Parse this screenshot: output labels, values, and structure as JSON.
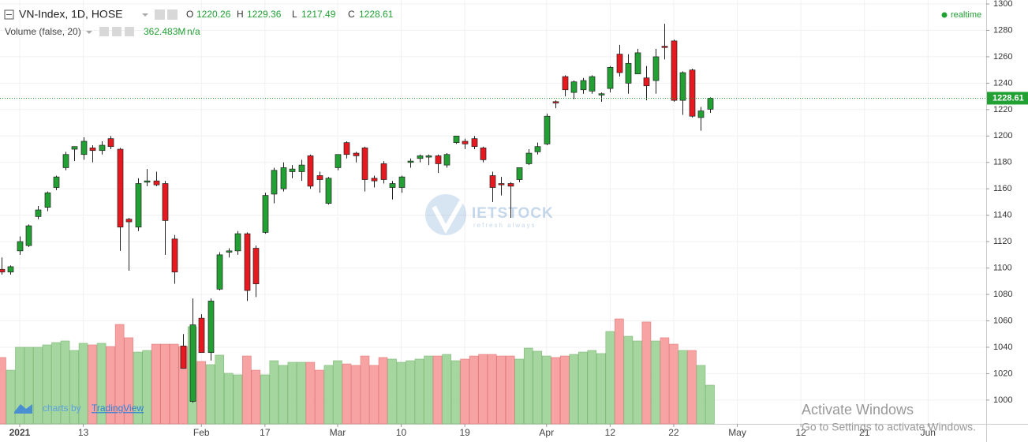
{
  "chart_data": {
    "type": "candlestick",
    "title": "VN-Index, 1D, HOSE",
    "ohlc_labels": [
      "O",
      "H",
      "L",
      "C"
    ],
    "open": [
      1099,
      1097,
      1113,
      1117,
      1139,
      1146,
      1161,
      1176,
      1190,
      1186,
      1191,
      1189,
      1198,
      1190,
      1137,
      1131,
      1165,
      1166,
      1164,
      1122,
      1041,
      999,
      1062,
      1036,
      1084,
      1112,
      1113,
      1126,
      1115,
      1127,
      1156,
      1160,
      1173,
      1173,
      1185,
      1170,
      1149,
      1176,
      1195,
      1187,
      1191,
      1168,
      1179,
      1161,
      1161,
      1180,
      1183,
      1184,
      1185,
      1178,
      1195,
      1196,
      1198,
      1191,
      1170,
      1164,
      1164,
      1167,
      1179,
      1188,
      1194,
      1226,
      1245,
      1233,
      1235,
      1234,
      1231,
      1236,
      1262,
      1240,
      1247,
      1244,
      1242,
      1268,
      1272,
      1227,
      1250,
      1214,
      1220.26
    ],
    "high": [
      1108,
      1102,
      1124,
      1133,
      1147,
      1158,
      1170,
      1188,
      1192,
      1199,
      1193,
      1196,
      1200,
      1191,
      1138,
      1168,
      1175,
      1173,
      1166,
      1125,
      1050,
      1077,
      1065,
      1077,
      1112,
      1115,
      1128,
      1127,
      1117,
      1157,
      1176,
      1180,
      1178,
      1182,
      1186,
      1173,
      1169,
      1186,
      1196,
      1188,
      1192,
      1170,
      1181,
      1166,
      1170,
      1183,
      1186,
      1186,
      1186,
      1187,
      1200,
      1198,
      1200,
      1192,
      1173,
      1169,
      1165,
      1176,
      1190,
      1195,
      1217,
      1227,
      1246,
      1242,
      1244,
      1246,
      1233,
      1253,
      1269,
      1262,
      1266,
      1253,
      1266,
      1285,
      1273,
      1249,
      1251,
      1222,
      1229.36
    ],
    "low": [
      1095,
      1095,
      1110,
      1116,
      1137,
      1143,
      1159,
      1174,
      1181,
      1182,
      1180,
      1186,
      1190,
      1113,
      1098,
      1128,
      1162,
      1162,
      1110,
      1088,
      1024,
      998,
      1036,
      1030,
      1083,
      1108,
      1110,
      1075,
      1078,
      1126,
      1149,
      1158,
      1168,
      1166,
      1160,
      1157,
      1148,
      1174,
      1183,
      1180,
      1158,
      1161,
      1164,
      1152,
      1157,
      1176,
      1180,
      1178,
      1172,
      1176,
      1194,
      1190,
      1190,
      1180,
      1150,
      1155,
      1138,
      1165,
      1178,
      1186,
      1193,
      1221,
      1230,
      1228,
      1232,
      1232,
      1226,
      1233,
      1245,
      1232,
      1247,
      1227,
      1232,
      1258,
      1226,
      1216,
      1214,
      1204,
      1217.49
    ],
    "close": [
      1097,
      1101,
      1120,
      1132,
      1144,
      1157,
      1169,
      1186,
      1192,
      1196,
      1189,
      1193,
      1192,
      1131,
      1135,
      1164,
      1166,
      1163,
      1136,
      1097,
      1024,
      1057,
      1036,
      1075,
      1110,
      1113,
      1126,
      1083,
      1088,
      1155,
      1174,
      1176,
      1175,
      1178,
      1162,
      1167,
      1168,
      1186,
      1186,
      1185,
      1167,
      1166,
      1167,
      1164,
      1169,
      1181,
      1185,
      1185,
      1179,
      1186,
      1200,
      1194,
      1192,
      1182,
      1161,
      1163,
      1162,
      1176,
      1187,
      1192,
      1215,
      1225,
      1235,
      1241,
      1242,
      1245,
      1232,
      1252,
      1248,
      1255,
      1263,
      1238,
      1260,
      1267,
      1227,
      1248,
      1215,
      1219,
      1228.61
    ],
    "up_color": "#22a034",
    "down_color": "#e5191f",
    "volume": {
      "name": "Volume (false, 20)",
      "values": [
        622,
        503,
        718,
        718,
        718,
        740,
        762,
        777,
        688,
        755,
        740,
        755,
        725,
        932,
        807,
        673,
        688,
        747,
        747,
        747,
        725,
        910,
        585,
        555,
        644,
        474,
        459,
        636,
        503,
        459,
        592,
        548,
        577,
        577,
        577,
        503,
        548,
        592,
        562,
        548,
        636,
        548,
        622,
        607,
        577,
        592,
        607,
        636,
        636,
        651,
        592,
        607,
        636,
        651,
        651,
        636,
        636,
        607,
        710,
        681,
        636,
        622,
        636,
        651,
        673,
        688,
        659,
        866,
        984,
        821,
        777,
        955,
        777,
        807,
        747,
        688,
        688,
        548,
        362.483
      ],
      "value_labels": [
        null,
        null,
        null,
        null,
        null,
        null,
        null,
        null,
        null,
        null,
        null,
        null,
        null,
        null,
        null,
        null,
        null,
        null,
        null,
        null,
        null,
        null,
        null,
        null,
        null,
        null,
        null,
        null,
        null,
        null,
        null,
        null,
        null,
        null,
        null,
        null,
        null,
        null,
        null,
        null,
        null,
        null,
        null,
        null,
        null,
        null,
        null,
        null,
        null,
        null,
        null,
        null,
        null,
        null,
        null,
        null,
        null,
        null,
        null,
        null,
        null,
        null,
        null,
        null,
        null,
        null,
        null,
        null,
        null,
        null,
        null,
        null,
        null,
        null,
        null,
        null,
        null,
        null,
        "362.483M"
      ],
      "extra": "n/a",
      "up_color": "#a5d6a0",
      "down_color": "#f7a3a3"
    },
    "ylim": [
      982,
      1303
    ],
    "yticks": [
      1000,
      1020,
      1040,
      1060,
      1080,
      1100,
      1120,
      1140,
      1160,
      1180,
      1200,
      1220,
      1240,
      1260,
      1280,
      1300
    ],
    "xlim": [
      -0.17,
      108.4
    ],
    "xticks": [
      {
        "value": 2,
        "label": "2021"
      },
      {
        "value": 9,
        "label": "13"
      },
      {
        "value": 22,
        "label": "Feb"
      },
      {
        "value": 29,
        "label": "17"
      },
      {
        "value": 37,
        "label": "Mar"
      },
      {
        "value": 44,
        "label": "10"
      },
      {
        "value": 51,
        "label": "19"
      },
      {
        "value": 60,
        "label": "Apr"
      },
      {
        "value": 67,
        "label": "12"
      },
      {
        "value": 74,
        "label": "22"
      },
      {
        "value": 81,
        "label": "May"
      },
      {
        "value": 88,
        "label": "12"
      },
      {
        "value": 95,
        "label": "21"
      },
      {
        "value": 102,
        "label": "Jun"
      }
    ],
    "grid": true,
    "last_price_line": true,
    "status": "realtime",
    "watermark": "IETSTOCK",
    "watermark_sub": "refresh always",
    "credit": "charts by",
    "credit_brand": "TradingView",
    "overlay_title": "Activate Windows",
    "overlay_text": "Go to Settings to activate Windows."
  }
}
